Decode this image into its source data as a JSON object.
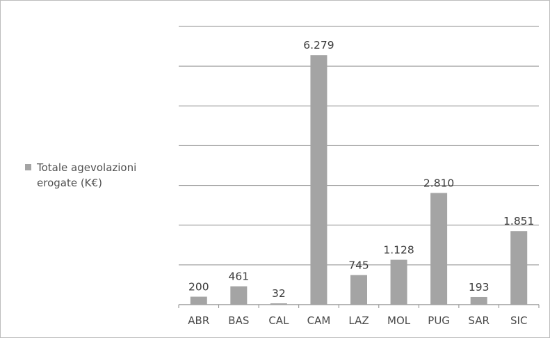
{
  "chart_data": {
    "type": "bar",
    "title": "",
    "xlabel": "",
    "ylabel": "",
    "categories": [
      "ABR",
      "BAS",
      "CAL",
      "CAM",
      "LAZ",
      "MOL",
      "PUG",
      "SAR",
      "SIC"
    ],
    "series": [
      {
        "name": "Totale agevolazioni erogate (K€)",
        "values": [
          200,
          461,
          32,
          6279,
          745,
          1128,
          2810,
          193,
          1851
        ],
        "value_labels": [
          "200",
          "461",
          "32",
          "6.279",
          "745",
          "1.128",
          "2.810",
          "193",
          "1.851"
        ],
        "color": "#a4a4a4"
      }
    ],
    "ylim": [
      0,
      7000
    ],
    "ytick_step": 1000,
    "y_tick_labels_shown": false,
    "grid": true,
    "legend_position": "left"
  },
  "legend": {
    "label": "Totale agevolazioni erogate (K€)"
  },
  "colors": {
    "bar": "#a4a4a4",
    "grid": "#8c8c8c",
    "text": "#4a4a4a"
  }
}
